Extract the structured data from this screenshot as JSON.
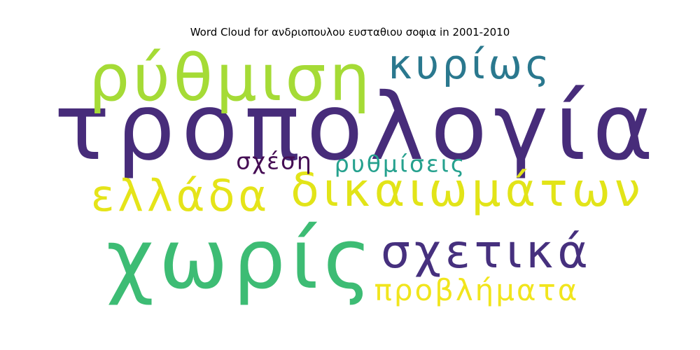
{
  "title": "Word Cloud for ανδριοπουλου ευσταθιου σοφια in 2001-2010",
  "words": [
    {
      "text": "τροπολογία",
      "color": "#472c7a"
    },
    {
      "text": "χωρίς",
      "color": "#3dbc74"
    },
    {
      "text": "ρύθμιση",
      "color": "#a5db36"
    },
    {
      "text": "δικαιωμάτων",
      "color": "#e2e418"
    },
    {
      "text": "σχετικά",
      "color": "#46307e"
    },
    {
      "text": "ελλάδα",
      "color": "#e5e419"
    },
    {
      "text": "κυρίως",
      "color": "#2a788e"
    },
    {
      "text": "προβλήματα",
      "color": "#f1e51d"
    },
    {
      "text": "ρυθμίσεις",
      "color": "#25a18e"
    },
    {
      "text": "σχέση",
      "color": "#450d54"
    }
  ]
}
